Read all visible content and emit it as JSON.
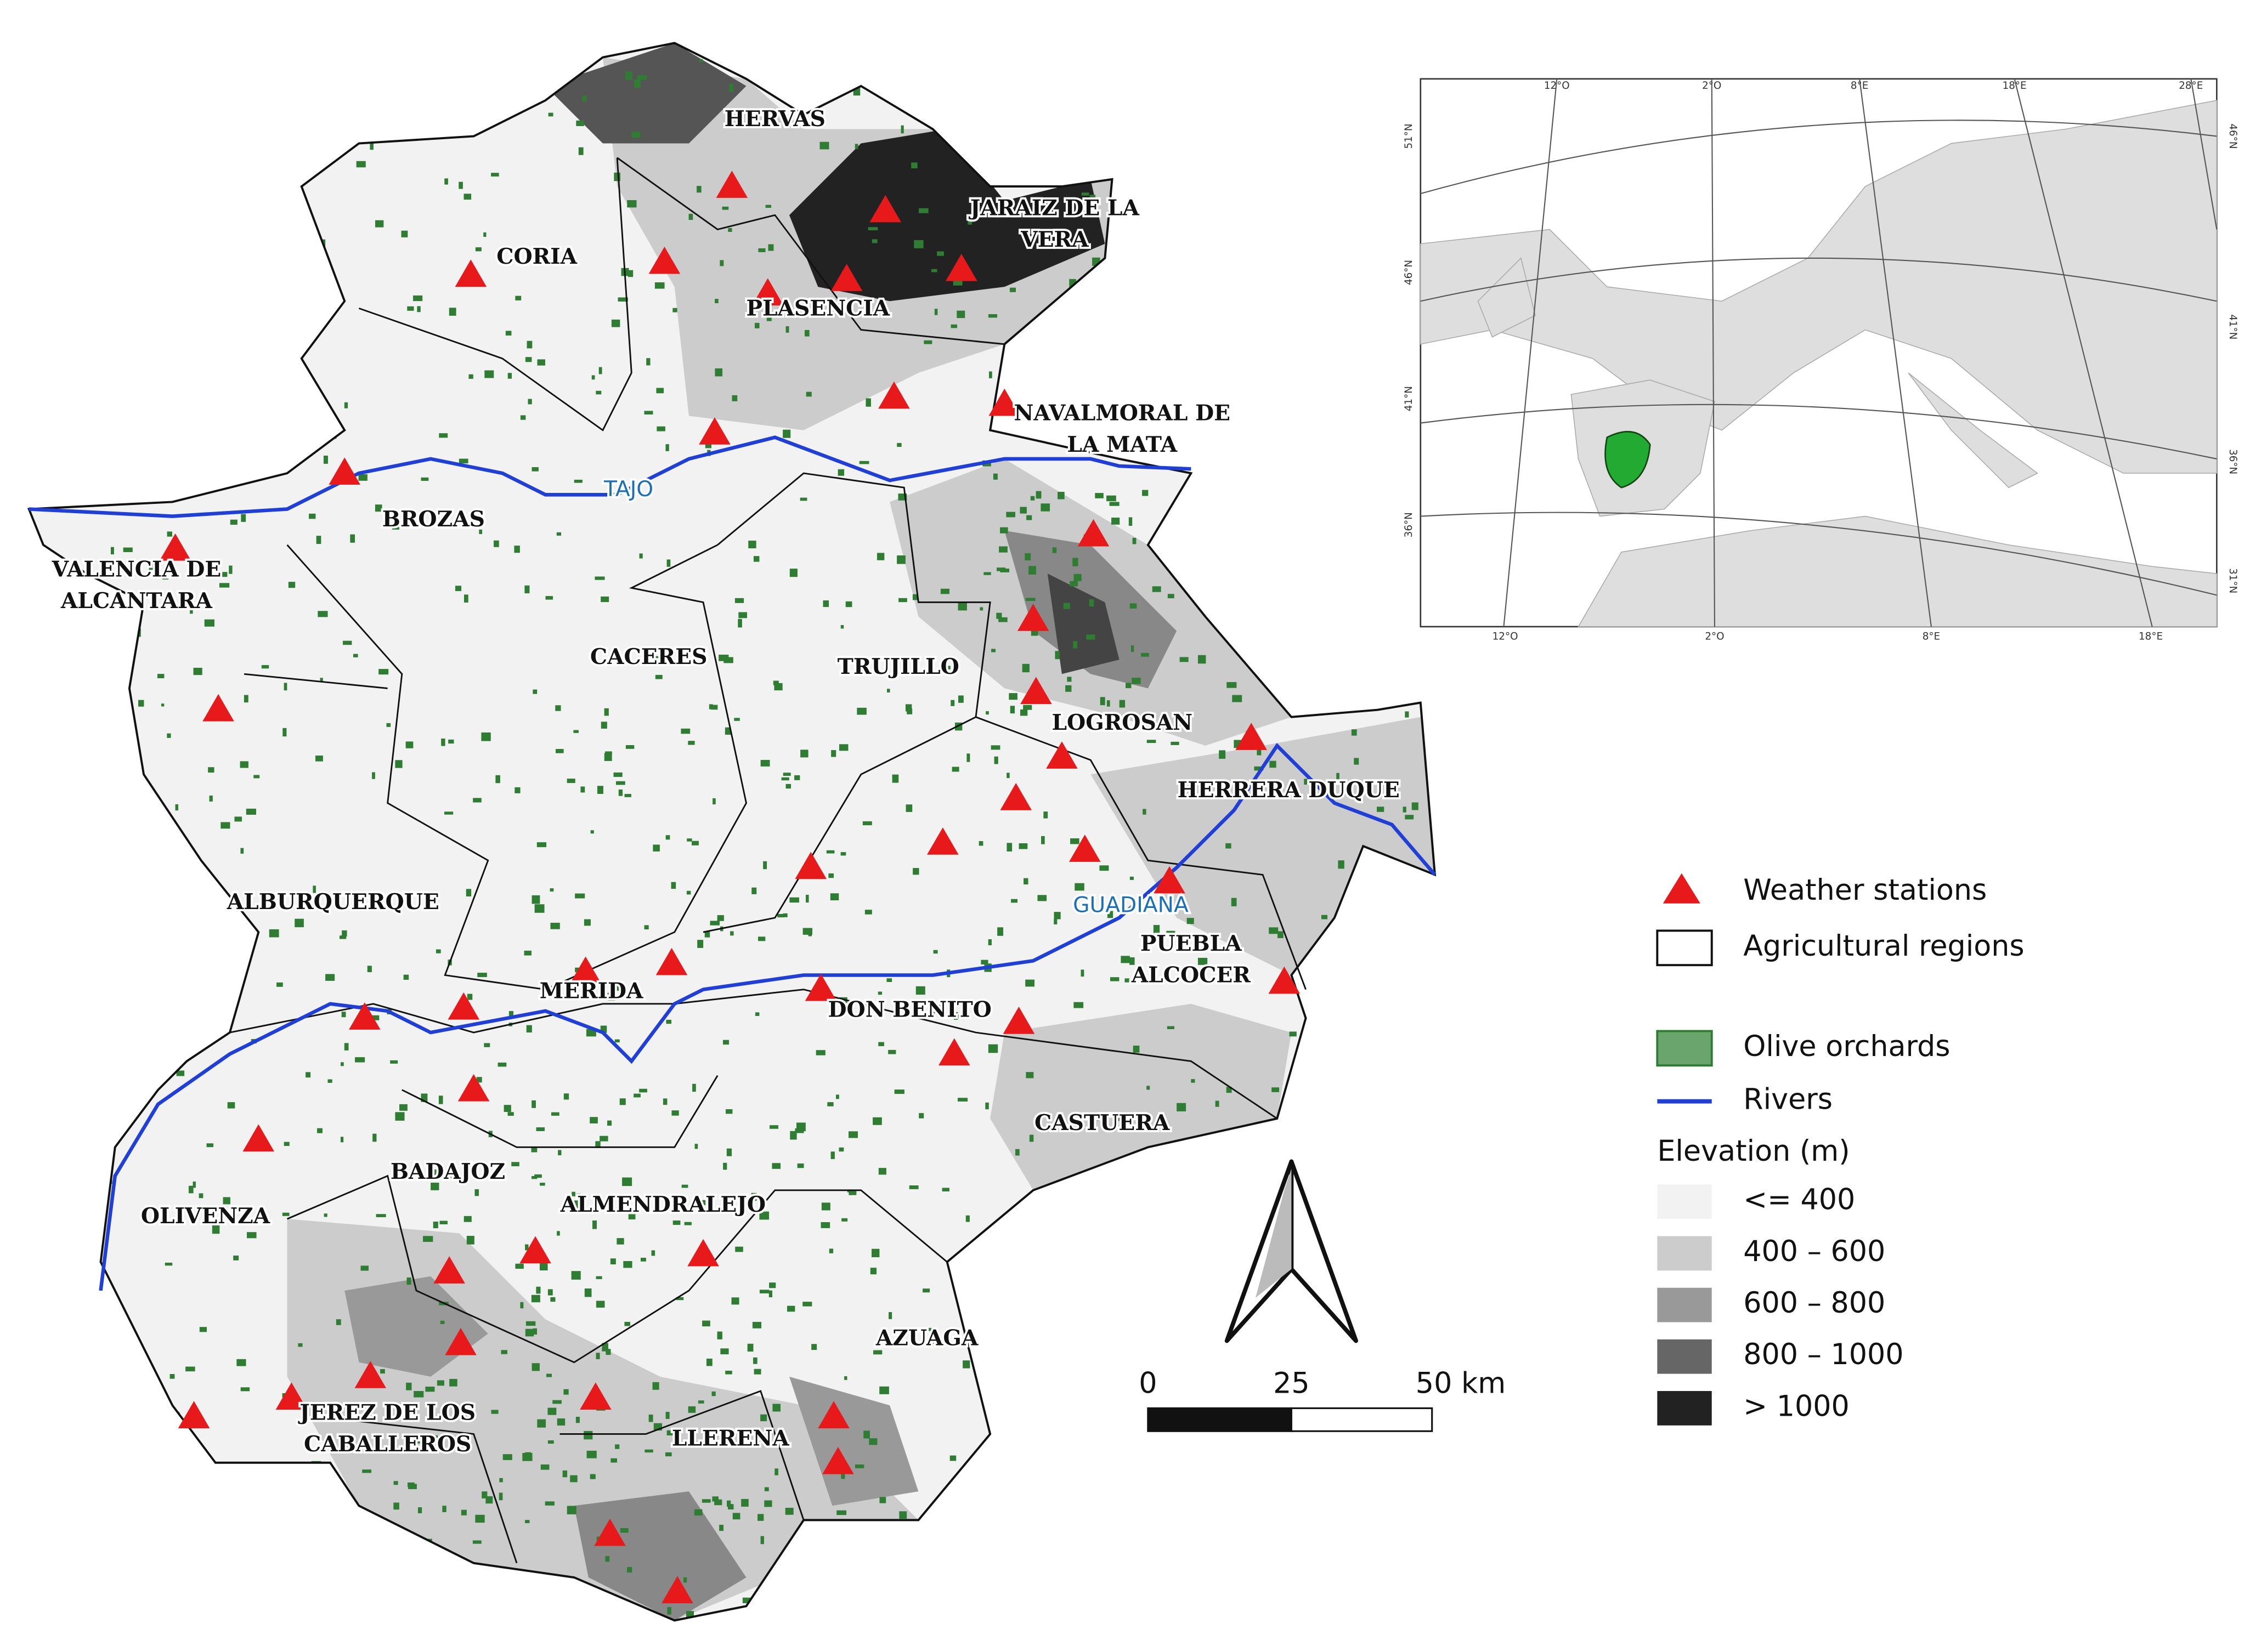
{
  "map": {
    "regions": [
      [
        "HERVAS"
      ],
      [
        "CORIA"
      ],
      [
        "JARAIZ DE LA",
        "VERA"
      ],
      [
        "PLASENCIA"
      ],
      [
        "NAVALMORAL DE",
        "LA MATA"
      ],
      [
        "BROZAS"
      ],
      [
        "VALENCIA DE",
        "ALCANTARA"
      ],
      [
        "CACERES"
      ],
      [
        "TRUJILLO"
      ],
      [
        "LOGROSAN"
      ],
      [
        "HERRERA DUQUE"
      ],
      [
        "ALBURQUERQUE"
      ],
      [
        "PUEBLA",
        "ALCOCER"
      ],
      [
        "MERIDA"
      ],
      [
        "DON BENITO"
      ],
      [
        "CASTUERA"
      ],
      [
        "BADAJOZ"
      ],
      [
        "ALMENDRALEJO"
      ],
      [
        "OLIVENZA"
      ],
      [
        "AZUAGA"
      ],
      [
        "JEREZ DE LOS",
        "CABALLEROS"
      ],
      [
        "LLERENA"
      ]
    ],
    "rivers": [
      "TAJO",
      "GUADIANA"
    ]
  },
  "legend": {
    "items": [
      "Weather stations",
      "Agricultural regions",
      "Olive orchards",
      "Rivers"
    ],
    "elevation_title": "Elevation (m)",
    "elevation_classes": [
      "<= 400",
      "400 – 600",
      "600 – 800",
      "800 – 1000",
      "> 1000"
    ]
  },
  "scale_bar": {
    "labels": [
      "0",
      "25",
      "50 km"
    ]
  },
  "inset": {
    "top_labels": [
      "12°O",
      "2°O",
      "8°E",
      "18°E",
      "28°E"
    ],
    "bottom_labels": [
      "12°O",
      "2°O",
      "8°E",
      "18°E"
    ],
    "left_labels": [
      "51°N",
      "46°N",
      "41°N",
      "36°N"
    ],
    "right_labels": [
      "46°N",
      "41°N",
      "36°N",
      "31°N"
    ]
  }
}
